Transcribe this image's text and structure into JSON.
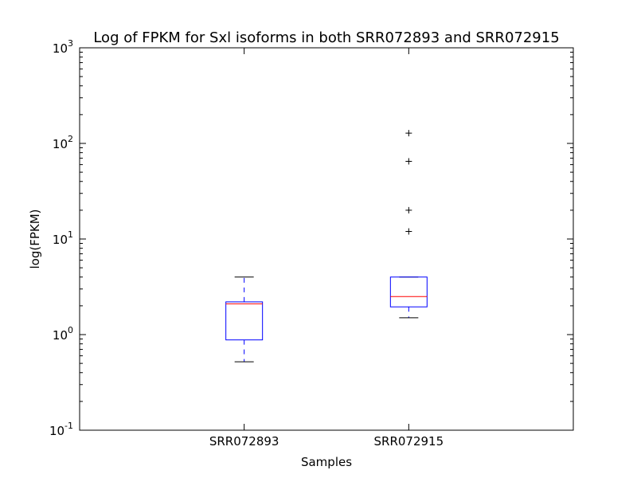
{
  "chart_data": {
    "type": "box",
    "title": "Log of FPKM for Sxl isoforms in both SRR072893 and SRR072915",
    "xlabel": "Samples",
    "ylabel": "log(FPKM)",
    "yscale": "log",
    "ylim": [
      0.1,
      1000
    ],
    "y_ticks": [
      {
        "value": 0.1,
        "base": "10",
        "exp": "-1"
      },
      {
        "value": 1,
        "base": "10",
        "exp": "0"
      },
      {
        "value": 10,
        "base": "10",
        "exp": "1"
      },
      {
        "value": 100,
        "base": "10",
        "exp": "2"
      },
      {
        "value": 1000,
        "base": "10",
        "exp": "3"
      }
    ],
    "grid": false,
    "categories": [
      "SRR072893",
      "SRR072915"
    ],
    "boxes": [
      {
        "category": "SRR072893",
        "whisker_low": 0.52,
        "q1": 0.88,
        "median": 2.1,
        "q3": 2.2,
        "whisker_high": 4.0,
        "outliers": []
      },
      {
        "category": "SRR072915",
        "whisker_low": 1.5,
        "q1": 1.95,
        "median": 2.5,
        "q3": 4.0,
        "whisker_high": 4.0,
        "outliers": [
          12,
          20,
          65,
          128
        ]
      }
    ],
    "colors": {
      "box": "#0000ff",
      "median": "#ff0000",
      "whisker": "#0000ff",
      "cap": "#000000",
      "outlier": "#000000"
    }
  }
}
